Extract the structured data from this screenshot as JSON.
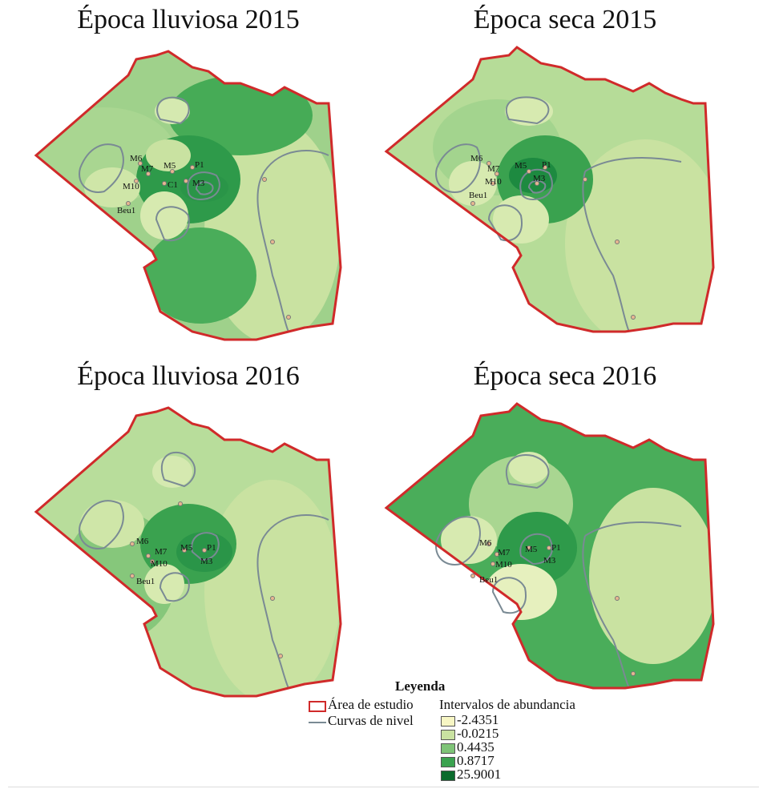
{
  "panels": [
    {
      "title": "Época lluviosa 2015",
      "labels": [
        "M6",
        "M7",
        "M5",
        "P1",
        "M10",
        "C1",
        "M3",
        "Beu1"
      ]
    },
    {
      "title": "Época seca 2015",
      "labels": [
        "M6",
        "M7",
        "M5",
        "P1",
        "M10",
        "M3",
        "Beu1"
      ]
    },
    {
      "title": "Época lluviosa 2016",
      "labels": [
        "M6",
        "M7",
        "M5",
        "P1",
        "M10",
        "M3",
        "Beu1"
      ]
    },
    {
      "title": "Época seca 2016",
      "labels": [
        "M6",
        "M7",
        "M5",
        "P1",
        "M10",
        "M3",
        "Beu1"
      ]
    }
  ],
  "legend": {
    "title": "Leyenda",
    "study_area": "Área de estudio",
    "contours": "Curvas de nivel",
    "intervals_title": "Intervalos de abundancia",
    "intervals": [
      {
        "label": "-2.4351",
        "color": "#f7f6c4"
      },
      {
        "label": "-0.0215",
        "color": "#c9e2a1"
      },
      {
        "label": "0.4435",
        "color": "#7fc478"
      },
      {
        "label": "0.8717",
        "color": "#3aa24f"
      },
      {
        "label": "25.9001",
        "color": "#0a6b2c"
      }
    ]
  },
  "colors": {
    "boundary": "#d02a2a",
    "contour": "#7a8a94",
    "point": "#e8b690"
  }
}
